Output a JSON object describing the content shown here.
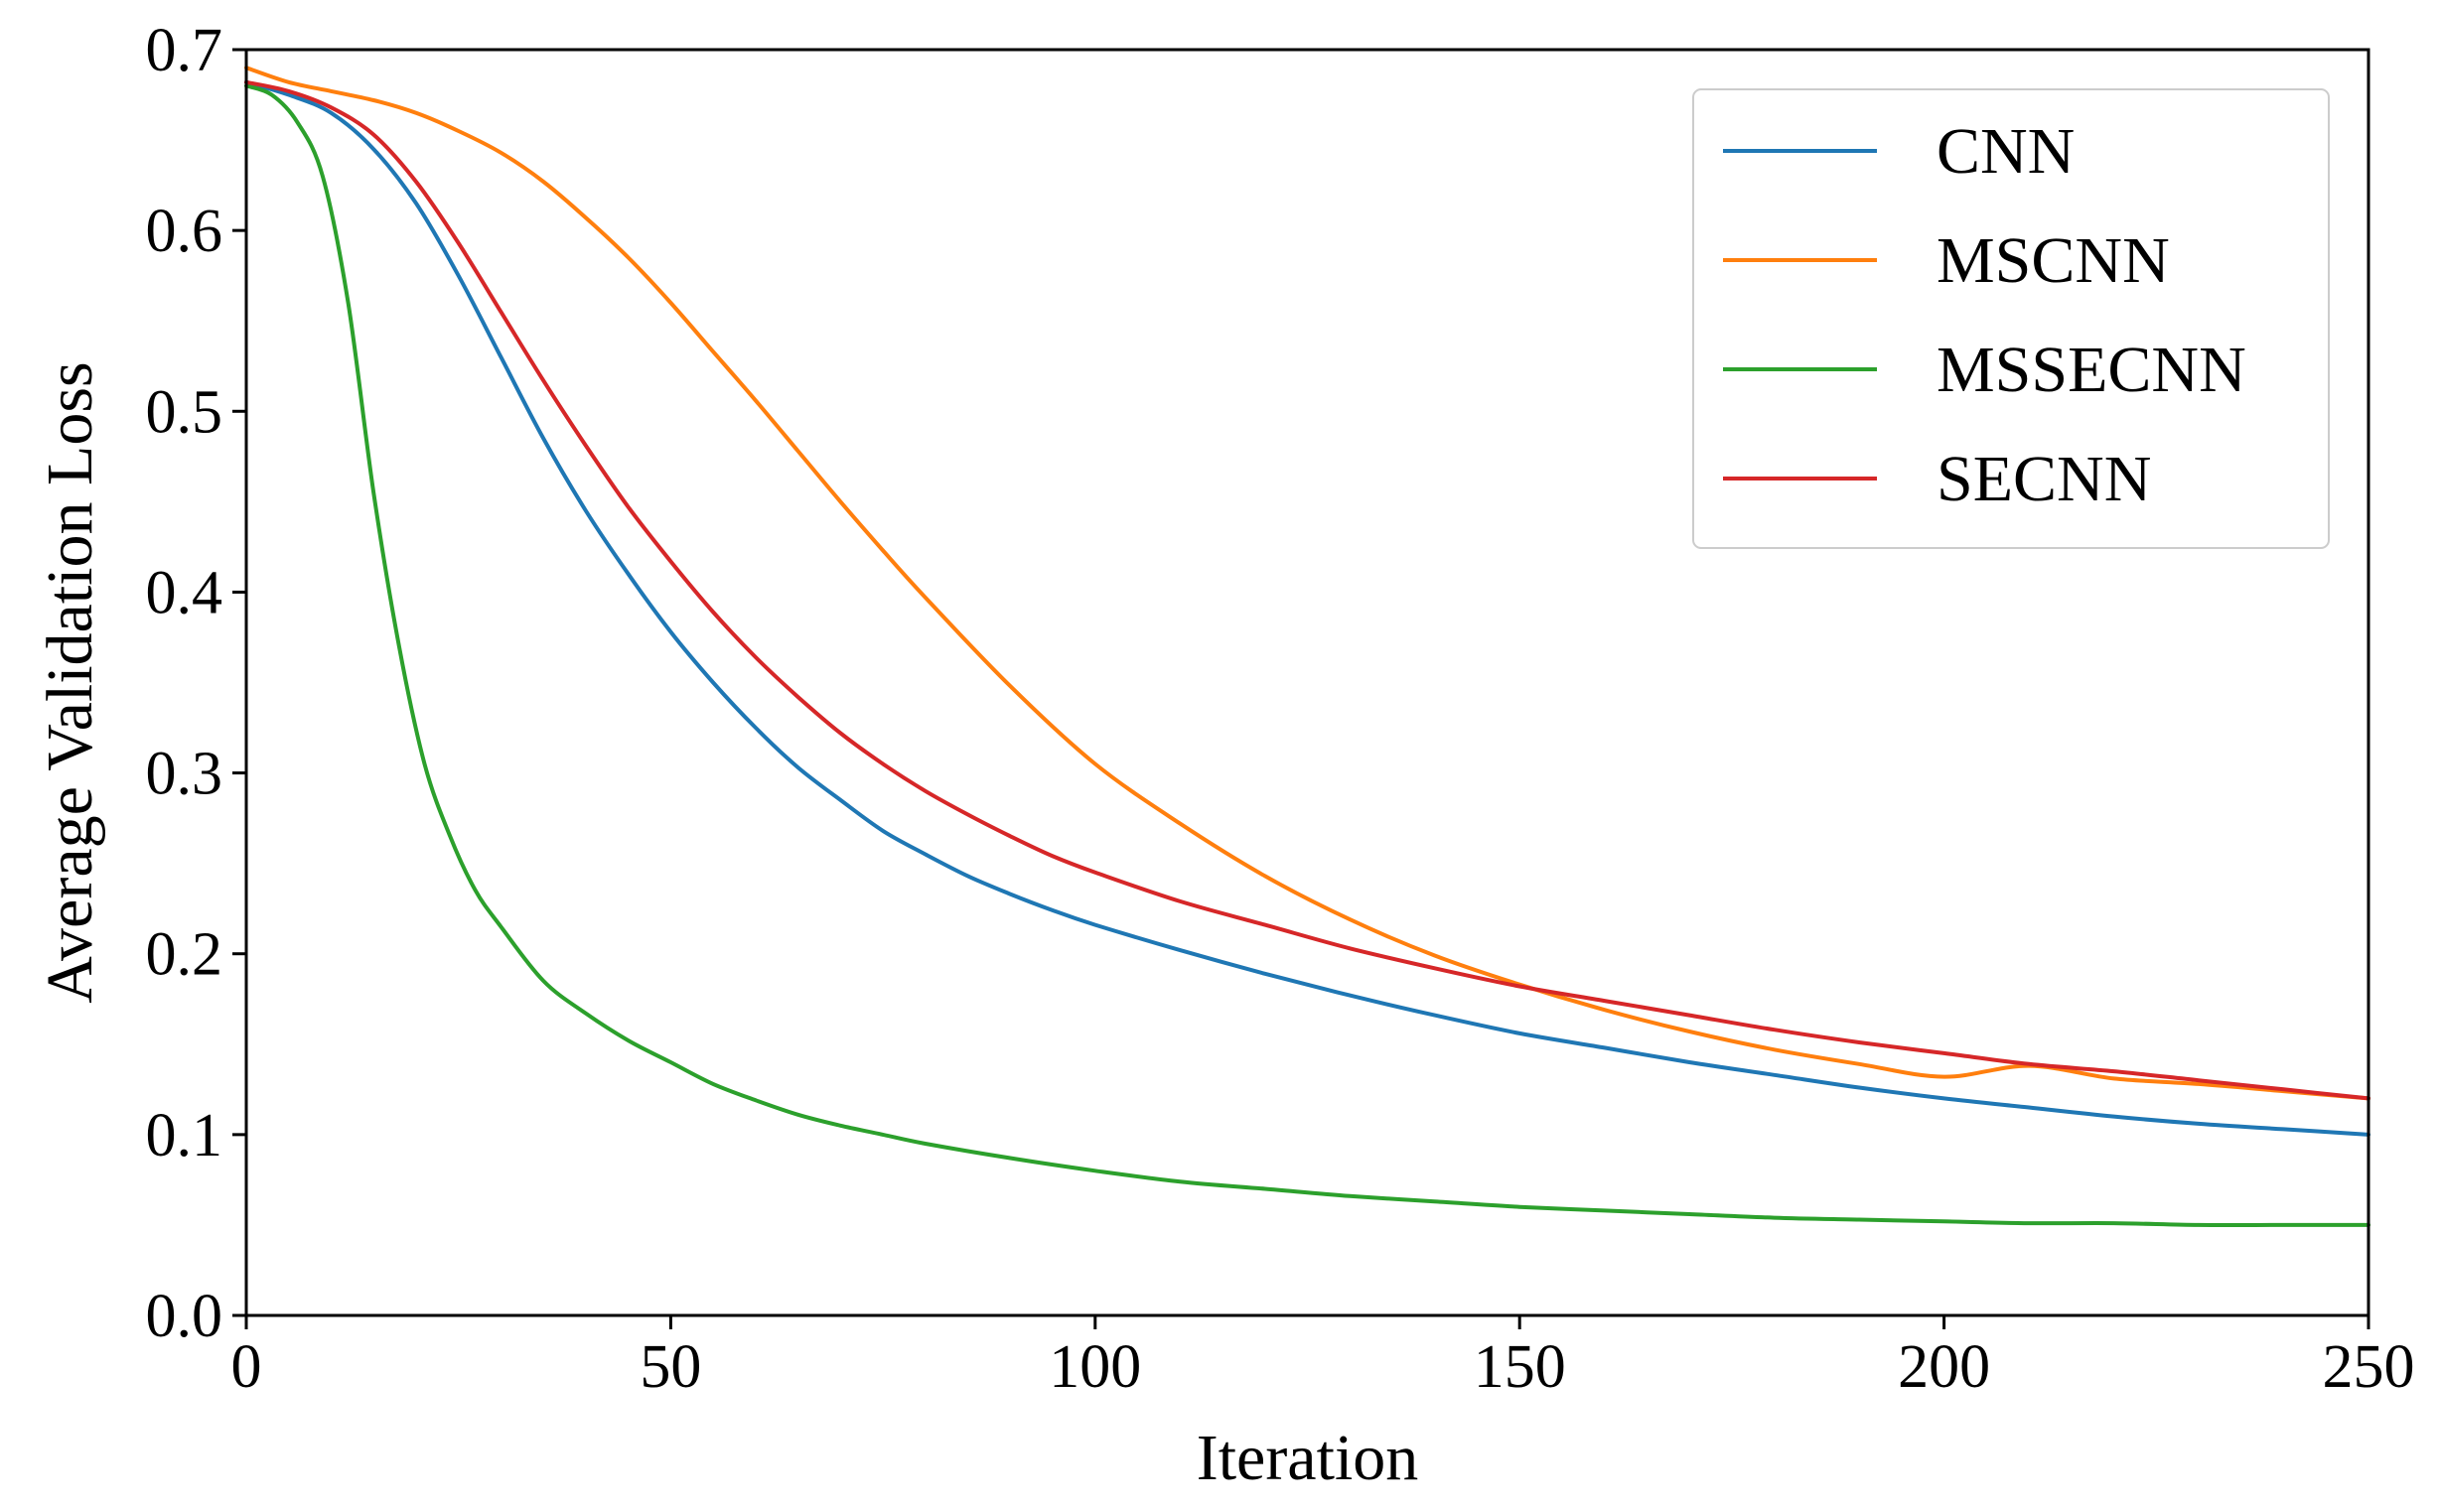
{
  "chart_data": {
    "type": "line",
    "title": "",
    "xlabel": "Iteration",
    "ylabel": "Average Validation Loss",
    "xlim": [
      0,
      250
    ],
    "ylim": [
      0.0,
      0.7
    ],
    "xticks": [
      0,
      50,
      100,
      150,
      200,
      250
    ],
    "xtick_labels": [
      "0",
      "50",
      "100",
      "150",
      "200",
      "250"
    ],
    "yticks": [
      0.0,
      0.1,
      0.2,
      0.3,
      0.4,
      0.5,
      0.6,
      0.7
    ],
    "ytick_labels": [
      "0.0",
      "0.1",
      "0.2",
      "0.3",
      "0.4",
      "0.5",
      "0.6",
      "0.7"
    ],
    "grid": false,
    "legend_position": "top-right",
    "series": [
      {
        "name": "CNN",
        "color": "#1f77b4",
        "x": [
          0,
          5,
          10,
          15,
          20,
          25,
          30,
          35,
          40,
          45,
          50,
          55,
          60,
          65,
          70,
          75,
          80,
          85,
          90,
          95,
          100,
          110,
          120,
          130,
          140,
          150,
          160,
          170,
          180,
          190,
          200,
          210,
          220,
          230,
          240,
          250
        ],
        "y": [
          0.682,
          0.675,
          0.665,
          0.645,
          0.615,
          0.575,
          0.53,
          0.485,
          0.445,
          0.41,
          0.378,
          0.35,
          0.325,
          0.303,
          0.285,
          0.268,
          0.255,
          0.243,
          0.233,
          0.224,
          0.216,
          0.202,
          0.189,
          0.177,
          0.166,
          0.156,
          0.148,
          0.14,
          0.133,
          0.126,
          0.12,
          0.115,
          0.11,
          0.106,
          0.103,
          0.1
        ]
      },
      {
        "name": "MSCNN",
        "color": "#ff7f0e",
        "x": [
          0,
          5,
          10,
          15,
          20,
          25,
          30,
          35,
          40,
          45,
          50,
          55,
          60,
          65,
          70,
          75,
          80,
          90,
          100,
          110,
          120,
          130,
          140,
          150,
          160,
          170,
          180,
          190,
          200,
          210,
          220,
          230,
          240,
          250
        ],
        "y": [
          0.69,
          0.682,
          0.677,
          0.672,
          0.665,
          0.655,
          0.643,
          0.627,
          0.607,
          0.585,
          0.56,
          0.533,
          0.506,
          0.478,
          0.45,
          0.423,
          0.397,
          0.348,
          0.305,
          0.272,
          0.243,
          0.219,
          0.199,
          0.183,
          0.169,
          0.157,
          0.147,
          0.139,
          0.132,
          0.138,
          0.131,
          0.128,
          0.124,
          0.12
        ]
      },
      {
        "name": "MSSECNN",
        "color": "#2ca02c",
        "x": [
          0,
          3,
          6,
          9,
          12,
          15,
          18,
          21,
          24,
          27,
          30,
          35,
          40,
          45,
          50,
          55,
          60,
          65,
          70,
          75,
          80,
          90,
          100,
          110,
          120,
          130,
          140,
          150,
          160,
          170,
          180,
          190,
          200,
          210,
          220,
          230,
          240,
          250
        ],
        "y": [
          0.68,
          0.675,
          0.66,
          0.63,
          0.56,
          0.455,
          0.37,
          0.305,
          0.265,
          0.235,
          0.215,
          0.185,
          0.167,
          0.152,
          0.14,
          0.128,
          0.119,
          0.111,
          0.105,
          0.1,
          0.095,
          0.087,
          0.08,
          0.074,
          0.07,
          0.066,
          0.063,
          0.06,
          0.058,
          0.056,
          0.054,
          0.053,
          0.052,
          0.051,
          0.051,
          0.05,
          0.05,
          0.05
        ]
      },
      {
        "name": "SECNN",
        "color": "#d62728",
        "x": [
          0,
          5,
          10,
          15,
          20,
          25,
          30,
          35,
          40,
          45,
          50,
          55,
          60,
          65,
          70,
          75,
          80,
          85,
          90,
          95,
          100,
          110,
          120,
          130,
          140,
          150,
          160,
          170,
          180,
          190,
          200,
          210,
          220,
          230,
          240,
          250
        ],
        "y": [
          0.682,
          0.677,
          0.668,
          0.653,
          0.627,
          0.593,
          0.555,
          0.517,
          0.481,
          0.447,
          0.417,
          0.389,
          0.364,
          0.342,
          0.322,
          0.305,
          0.29,
          0.277,
          0.265,
          0.254,
          0.245,
          0.229,
          0.216,
          0.203,
          0.192,
          0.182,
          0.174,
          0.166,
          0.158,
          0.151,
          0.145,
          0.139,
          0.135,
          0.13,
          0.125,
          0.12
        ]
      }
    ]
  }
}
